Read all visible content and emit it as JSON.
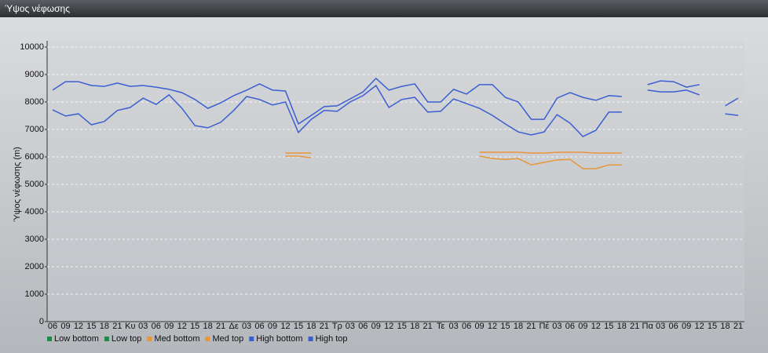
{
  "chart_data": {
    "type": "line",
    "title": "Ύψος νέφωσης",
    "y_label": "Ύψος νέφωσης (m)",
    "categories": [
      "06",
      "09",
      "12",
      "15",
      "18",
      "21",
      "Κυ",
      "03",
      "06",
      "09",
      "12",
      "15",
      "18",
      "21",
      "Δε",
      "03",
      "06",
      "09",
      "12",
      "15",
      "18",
      "21",
      "Τρ",
      "03",
      "06",
      "09",
      "12",
      "15",
      "18",
      "21",
      "Τε",
      "03",
      "06",
      "09",
      "12",
      "15",
      "18",
      "21",
      "Πέ",
      "03",
      "06",
      "09",
      "12",
      "15",
      "18",
      "21",
      "Πα",
      "03",
      "06",
      "09",
      "12",
      "15",
      "18",
      "21"
    ],
    "ylim": [
      0,
      10000
    ],
    "yticks": [
      0,
      1000,
      2000,
      3000,
      4000,
      5000,
      6000,
      7000,
      8000,
      9000,
      10000
    ],
    "grid": true,
    "series": [
      {
        "name": "Low bottom",
        "color": "#1e8a4a",
        "values": [
          null,
          null,
          null,
          null,
          null,
          null,
          null,
          null,
          null,
          null,
          null,
          null,
          null,
          null,
          null,
          null,
          null,
          null,
          null,
          null,
          null,
          null,
          null,
          null,
          null,
          null,
          null,
          null,
          null,
          null,
          null,
          null,
          null,
          null,
          null,
          null,
          null,
          null,
          null,
          null,
          null,
          null,
          null,
          null,
          null,
          null,
          null,
          null,
          null,
          null,
          null,
          null,
          null,
          null
        ]
      },
      {
        "name": "Low top",
        "color": "#1e8a4a",
        "values": [
          null,
          null,
          null,
          null,
          null,
          null,
          null,
          null,
          null,
          null,
          null,
          null,
          null,
          null,
          null,
          null,
          null,
          null,
          null,
          null,
          null,
          null,
          null,
          null,
          null,
          null,
          null,
          null,
          null,
          null,
          null,
          null,
          null,
          null,
          null,
          null,
          null,
          null,
          null,
          null,
          null,
          null,
          null,
          null,
          null,
          null,
          null,
          null,
          null,
          null,
          null,
          null,
          null,
          null
        ]
      },
      {
        "name": "Med bottom",
        "color": "#e8963a",
        "values": [
          null,
          null,
          null,
          null,
          null,
          null,
          null,
          null,
          null,
          null,
          null,
          null,
          null,
          null,
          null,
          null,
          null,
          null,
          6030,
          6030,
          5970,
          null,
          null,
          null,
          null,
          null,
          null,
          null,
          null,
          null,
          null,
          null,
          null,
          6030,
          5940,
          5910,
          5940,
          5710,
          5800,
          5890,
          5910,
          5570,
          5570,
          5710,
          5710,
          null,
          null,
          null,
          null,
          null,
          null,
          null,
          null,
          null
        ]
      },
      {
        "name": "Med top",
        "color": "#e8963a",
        "values": [
          null,
          null,
          null,
          null,
          null,
          null,
          null,
          null,
          null,
          null,
          null,
          null,
          null,
          null,
          null,
          null,
          null,
          null,
          6140,
          6140,
          6140,
          null,
          null,
          null,
          null,
          null,
          null,
          null,
          null,
          null,
          null,
          null,
          null,
          6170,
          6170,
          6170,
          6170,
          6140,
          6140,
          6170,
          6170,
          6170,
          6140,
          6140,
          6140,
          null,
          null,
          null,
          null,
          null,
          null,
          null,
          null,
          null
        ]
      },
      {
        "name": "High bottom",
        "color": "#3b5fd0",
        "values": [
          7710,
          7490,
          7570,
          7170,
          7290,
          7690,
          7800,
          8140,
          7910,
          8260,
          7770,
          7140,
          7060,
          7260,
          7690,
          8200,
          8090,
          7890,
          8000,
          6890,
          7370,
          7690,
          7660,
          8000,
          8230,
          8600,
          7800,
          8090,
          8170,
          7630,
          7660,
          8110,
          7940,
          7770,
          7510,
          7200,
          6910,
          6800,
          6910,
          7540,
          7230,
          6740,
          6970,
          7630,
          7630,
          null,
          8430,
          8370,
          8370,
          8430,
          8260,
          null,
          7570,
          7510
        ]
      },
      {
        "name": "High top",
        "color": "#3b5fd0",
        "values": [
          8430,
          8740,
          8740,
          8600,
          8570,
          8690,
          8570,
          8600,
          8540,
          8460,
          8340,
          8090,
          7770,
          7970,
          8230,
          8430,
          8660,
          8430,
          8400,
          7200,
          7510,
          7830,
          7860,
          8110,
          8370,
          8860,
          8430,
          8570,
          8660,
          8000,
          8000,
          8460,
          8290,
          8630,
          8630,
          8170,
          8000,
          7370,
          7370,
          8140,
          8340,
          8170,
          8060,
          8230,
          8200,
          null,
          8630,
          8770,
          8740,
          8540,
          8630,
          null,
          7860,
          8140
        ]
      }
    ]
  }
}
